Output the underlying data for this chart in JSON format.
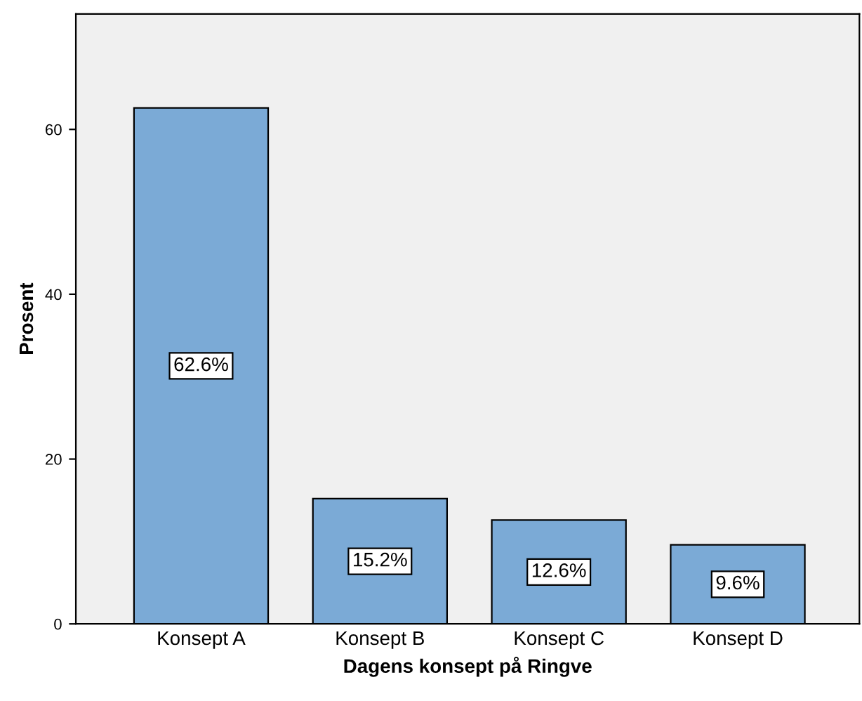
{
  "chart_data": {
    "type": "bar",
    "xlabel": "Dagens konsept på Ringve",
    "ylabel": "Prosent",
    "categories": [
      "Konsept A",
      "Konsept B",
      "Konsept C",
      "Konsept D"
    ],
    "values": [
      62.6,
      15.2,
      12.6,
      9.6
    ],
    "color": "#7baad6",
    "value_labels": [
      "62.6%",
      "15.2%",
      "12.6%",
      "9.6%"
    ],
    "ylim": [
      0,
      74
    ],
    "yticks": [
      0,
      20,
      40,
      60
    ],
    "grid": false,
    "legend": false
  }
}
